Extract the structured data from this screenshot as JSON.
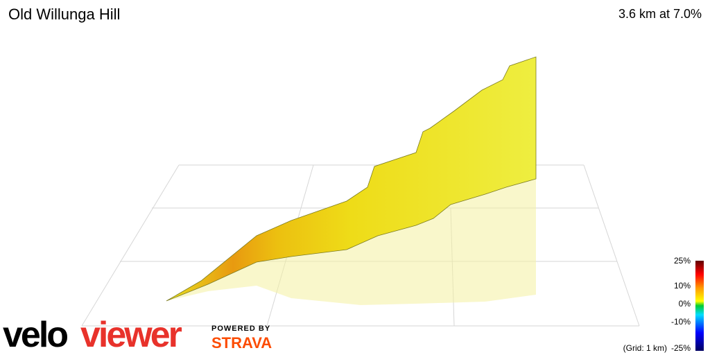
{
  "header": {
    "title": "Old Willunga Hill",
    "summary": "3.6 km at 7.0%"
  },
  "legend": {
    "ticks": [
      "25%",
      "10%",
      "0%",
      "-10%",
      "-25%"
    ],
    "grid_note": "(Grid: 1 km)"
  },
  "branding": {
    "logo_part1": "velo",
    "logo_part2": "viewer",
    "powered_by": "POWERED BY",
    "partner": "STRAVA"
  }
}
